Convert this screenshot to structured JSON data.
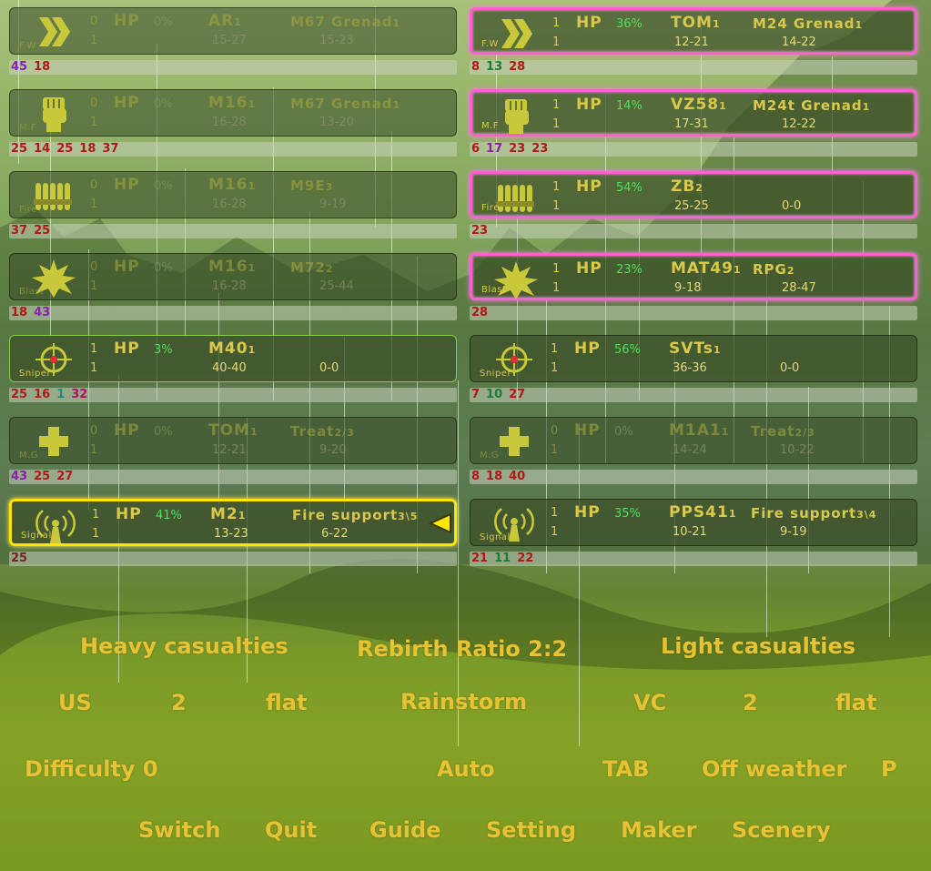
{
  "colors": {
    "accent_text": "#d9c84a",
    "hp_percent": "#4fe05a",
    "menu_text": "#e6c234",
    "pink_highlight": "#ff5fd0",
    "yellow_highlight": "#ffe600",
    "green_border": "#7fd04a"
  },
  "us_units": [
    {
      "class": "F.W",
      "icon": "double-chevron-icon",
      "state": "dim",
      "level": "0",
      "level2": "1",
      "hp_label": "HP",
      "hp_pct": "0%",
      "w1": "AR",
      "w1n": "1",
      "r1": "15-27",
      "w2": "M67 Grenad",
      "w2n": "1",
      "r2": "15-23",
      "kills": [
        {
          "v": "45",
          "c": "c-pur"
        },
        {
          "v": "18",
          "c": "c-red"
        }
      ]
    },
    {
      "class": "M.F",
      "icon": "fist-icon",
      "state": "dim",
      "level": "0",
      "level2": "1",
      "hp_label": "HP",
      "hp_pct": "0%",
      "w1": "M16",
      "w1n": "1",
      "r1": "16-28",
      "w2": "M67 Grenad",
      "w2n": "1",
      "r2": "13-20",
      "kills": [
        {
          "v": "25",
          "c": "c-red"
        },
        {
          "v": "14",
          "c": "c-red"
        },
        {
          "v": "25",
          "c": "c-red"
        },
        {
          "v": "18",
          "c": "c-red"
        },
        {
          "v": "37",
          "c": "c-red"
        }
      ]
    },
    {
      "class": "Fire",
      "icon": "ammo-icon",
      "state": "dim",
      "level": "0",
      "level2": "1",
      "hp_label": "HP",
      "hp_pct": "0%",
      "w1": "M16",
      "w1n": "1",
      "r1": "16-28",
      "w2": "M9E",
      "w2n": "3",
      "r2": "9-19",
      "kills": [
        {
          "v": "37",
          "c": "c-red"
        },
        {
          "v": "25",
          "c": "c-red"
        }
      ]
    },
    {
      "class": "Blast",
      "icon": "explosion-icon",
      "state": "dim",
      "level": "0",
      "level2": "1",
      "hp_label": "HP",
      "hp_pct": "0%",
      "w1": "M16",
      "w1n": "1",
      "r1": "16-28",
      "w2": "M72",
      "w2n": "2",
      "r2": "25-44",
      "kills": [
        {
          "v": "18",
          "c": "c-red"
        },
        {
          "v": "43",
          "c": "c-pur"
        }
      ]
    },
    {
      "class": "Sniper",
      "icon": "crosshair-icon",
      "state": "green",
      "level": "1",
      "level2": "1",
      "hp_label": "HP",
      "hp_pct": "3%",
      "w1": "M40",
      "w1n": "1",
      "r1": "40-40",
      "w2": "",
      "w2n": "",
      "r2": "0-0",
      "kills": [
        {
          "v": "25",
          "c": "c-red"
        },
        {
          "v": "16",
          "c": "c-red"
        },
        {
          "v": "1",
          "c": "c-teal"
        },
        {
          "v": "32",
          "c": "c-mag"
        }
      ]
    },
    {
      "class": "M.G",
      "icon": "medic-cross-icon",
      "state": "dim",
      "level": "0",
      "level2": "1",
      "hp_label": "HP",
      "hp_pct": "0%",
      "w1": "TOM",
      "w1n": "1",
      "r1": "12-21",
      "w2": "Treat",
      "w2n": "2/3",
      "r2": "9-20",
      "kills": [
        {
          "v": "43",
          "c": "c-pur"
        },
        {
          "v": "25",
          "c": "c-red"
        },
        {
          "v": "27",
          "c": "c-red"
        }
      ]
    },
    {
      "class": "Signal",
      "icon": "radio-tower-icon",
      "state": "yellow",
      "level": "1",
      "level2": "1",
      "hp_label": "HP",
      "hp_pct": "41%",
      "w1": "M2",
      "w1n": "1",
      "r1": "13-23",
      "w2": "Fire support",
      "w2n": "3\\5",
      "r2": "6-22",
      "kills": [
        {
          "v": "25",
          "c": "c-dk"
        }
      ]
    }
  ],
  "vc_units": [
    {
      "class": "F.W",
      "icon": "double-chevron-icon",
      "state": "pink",
      "level": "1",
      "level2": "1",
      "hp_label": "HP",
      "hp_pct": "36%",
      "w1": "TOM",
      "w1n": "1",
      "r1": "12-21",
      "w2": "M24 Grenad",
      "w2n": "1",
      "r2": "14-22",
      "kills": [
        {
          "v": "8",
          "c": "c-red"
        },
        {
          "v": "13",
          "c": "c-grn"
        },
        {
          "v": "28",
          "c": "c-red"
        }
      ]
    },
    {
      "class": "M.F",
      "icon": "fist-icon",
      "state": "pink",
      "level": "1",
      "level2": "1",
      "hp_label": "HP",
      "hp_pct": "14%",
      "w1": "VZ58",
      "w1n": "1",
      "r1": "17-31",
      "w2": "M24t Grenad",
      "w2n": "1",
      "r2": "12-22",
      "kills": [
        {
          "v": "6",
          "c": "c-red"
        },
        {
          "v": "17",
          "c": "c-pur"
        },
        {
          "v": "23",
          "c": "c-red"
        },
        {
          "v": "23",
          "c": "c-red"
        }
      ]
    },
    {
      "class": "Fire",
      "icon": "ammo-icon",
      "state": "pink",
      "level": "1",
      "level2": "1",
      "hp_label": "HP",
      "hp_pct": "54%",
      "w1": "ZB",
      "w1n": "2",
      "r1": "25-25",
      "w2": "",
      "w2n": "",
      "r2": "0-0",
      "kills": [
        {
          "v": "23",
          "c": "c-red"
        }
      ]
    },
    {
      "class": "Blast",
      "icon": "explosion-icon",
      "state": "pink",
      "level": "1",
      "level2": "1",
      "hp_label": "HP",
      "hp_pct": "23%",
      "w1": "MAT49",
      "w1n": "1",
      "r1": "9-18",
      "w2": "RPG",
      "w2n": "2",
      "r2": "28-47",
      "kills": [
        {
          "v": "28",
          "c": "c-red"
        }
      ]
    },
    {
      "class": "Sniper",
      "icon": "crosshair-icon",
      "state": "normal",
      "level": "1",
      "level2": "1",
      "hp_label": "HP",
      "hp_pct": "56%",
      "w1": "SVTs",
      "w1n": "1",
      "r1": "36-36",
      "w2": "",
      "w2n": "",
      "r2": "0-0",
      "kills": [
        {
          "v": "7",
          "c": "c-red"
        },
        {
          "v": "10",
          "c": "c-grn"
        },
        {
          "v": "27",
          "c": "c-red"
        }
      ]
    },
    {
      "class": "M.G",
      "icon": "medic-cross-icon",
      "state": "dim",
      "level": "0",
      "level2": "1",
      "hp_label": "HP",
      "hp_pct": "0%",
      "w1": "M1A1",
      "w1n": "1",
      "r1": "14-24",
      "w2": "Treat",
      "w2n": "2/3",
      "r2": "10-22",
      "kills": [
        {
          "v": "8",
          "c": "c-red"
        },
        {
          "v": "18",
          "c": "c-red"
        },
        {
          "v": "40",
          "c": "c-red"
        }
      ]
    },
    {
      "class": "Signal",
      "icon": "radio-tower-icon",
      "state": "normal",
      "level": "1",
      "level2": "1",
      "hp_label": "HP",
      "hp_pct": "35%",
      "w1": "PPS41",
      "w1n": "1",
      "r1": "10-21",
      "w2": "Fire support",
      "w2n": "3\\4",
      "r2": "9-19",
      "kills": [
        {
          "v": "21",
          "c": "c-red"
        },
        {
          "v": "11",
          "c": "c-grn"
        },
        {
          "v": "22",
          "c": "c-red"
        }
      ]
    }
  ],
  "menu": {
    "heavy_casualties": "Heavy casualties",
    "rebirth_ratio": "Rebirth Ratio  2:2",
    "light_casualties": "Light casualties",
    "us": "US",
    "us_count": "2",
    "us_terrain": "flat",
    "weather": "Rainstorm",
    "vc": "VC",
    "vc_count": "2",
    "vc_terrain": "flat",
    "difficulty": "Difficulty  0",
    "auto": "Auto",
    "tab": "TAB",
    "off_weather": "Off weather",
    "p": "P",
    "switch": "Switch",
    "quit": "Quit",
    "guide": "Guide",
    "setting": "Setting",
    "maker": "Maker",
    "scenery": "Scenery"
  }
}
